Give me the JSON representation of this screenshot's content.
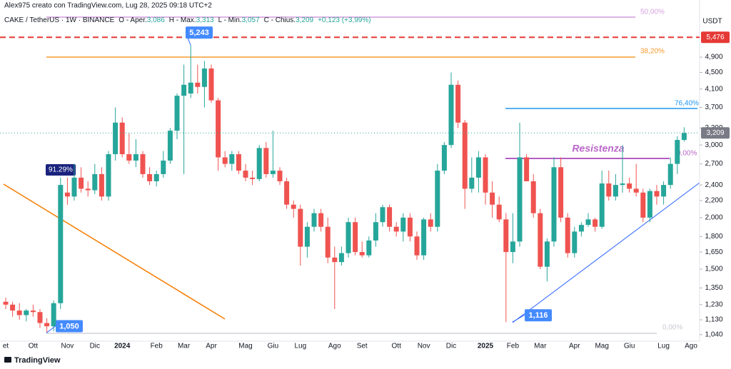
{
  "chart_data": {
    "type": "candlestick",
    "credit": "Alex975 creato con TradingView.com, Lug 28, 2025 09:18 UTC+2",
    "symbol": "CAKE / TetherUS · 1W · BINANCE",
    "header": [
      "O - Aper.",
      "3,086",
      "H - Max.",
      "3,313",
      "L - Min.",
      "3,057",
      "C - Chius.",
      "3,209",
      "+0,123 (+3,99%)"
    ],
    "currency": "USDT",
    "brand": "TradingView",
    "log_scale": true,
    "up_color": "#26a69a",
    "down_color": "#ef5350",
    "ylim": [
      0.995,
      6.48
    ],
    "yticks": [
      {
        "value": 1.04,
        "label": "1,040"
      },
      {
        "value": 1.13,
        "label": "1,130"
      },
      {
        "value": 1.23,
        "label": "1,230"
      },
      {
        "value": 1.35,
        "label": "1,350"
      },
      {
        "value": 1.5,
        "label": "1,500"
      },
      {
        "value": 1.65,
        "label": "1,650"
      },
      {
        "value": 1.8,
        "label": "1,800"
      },
      {
        "value": 2,
        "label": "2,000"
      },
      {
        "value": 2.2,
        "label": "2,200"
      },
      {
        "value": 2.4,
        "label": "2,400"
      },
      {
        "value": 2.7,
        "label": "2,700"
      },
      {
        "value": 3,
        "label": "3,000"
      },
      {
        "value": 3.3,
        "label": "3,300"
      },
      {
        "value": 3.7,
        "label": "3,700"
      },
      {
        "value": 4.1,
        "label": "4,100"
      },
      {
        "value": 4.5,
        "label": "4,500"
      },
      {
        "value": 4.9,
        "label": "4,900"
      }
    ],
    "categories": [
      "et",
      null,
      null,
      null,
      "Ott",
      null,
      null,
      null,
      null,
      "Nov",
      null,
      null,
      null,
      "Dic",
      null,
      null,
      null,
      "2024",
      null,
      null,
      null,
      null,
      "Feb",
      null,
      null,
      null,
      "Mar",
      null,
      null,
      null,
      "Apr",
      null,
      null,
      null,
      null,
      "Mag",
      null,
      null,
      null,
      "Giu",
      null,
      null,
      null,
      "Lug",
      null,
      null,
      null,
      null,
      "Ago",
      null,
      null,
      null,
      "Set",
      null,
      null,
      null,
      null,
      "Ott",
      null,
      null,
      null,
      "Nov",
      null,
      null,
      null,
      "Dic",
      null,
      null,
      null,
      null,
      "2025",
      null,
      null,
      null,
      "Feb",
      null,
      null,
      null,
      "Mar",
      null,
      null,
      null,
      null,
      "Apr",
      null,
      null,
      null,
      "Mag",
      null,
      null,
      null,
      "Giu",
      null,
      null,
      null,
      null,
      "Lug",
      null,
      null,
      null,
      "Ago"
    ],
    "open": [
      1.25,
      1.23,
      1.19,
      1.16,
      1.19,
      1.18,
      1.11,
      1.09,
      1.24,
      2.3,
      2.25,
      2.5,
      2.35,
      2.33,
      2.55,
      2.25,
      2.85,
      3.4,
      2.85,
      2.75,
      2.85,
      2.55,
      2.45,
      2.55,
      2.75,
      3.25,
      3.95,
      4.0,
      4.25,
      4.15,
      4.6,
      3.85,
      2.8,
      2.7,
      2.85,
      2.6,
      2.5,
      2.48,
      2.95,
      2.55,
      2.6,
      2.45,
      2.15,
      2.1,
      1.7,
      1.9,
      2.05,
      1.9,
      1.6,
      1.56,
      1.64,
      1.95,
      1.65,
      1.62,
      1.76,
      1.95,
      2.12,
      1.9,
      1.85,
      2.0,
      1.8,
      1.62,
      1.98,
      1.9,
      2.6,
      3.0,
      4.2,
      3.4,
      2.35,
      2.5,
      2.8,
      2.3,
      2.15,
      1.98,
      1.65,
      1.75,
      2.8,
      2.45,
      2.05,
      1.52,
      1.75,
      2.65,
      2.0,
      1.64,
      1.85,
      1.92,
      1.98,
      1.9,
      2.42,
      2.25,
      2.4,
      2.42,
      2.35,
      2.3,
      2.0,
      2.32,
      2.25,
      2.4,
      2.7,
      3.086,
      null
    ],
    "high": [
      1.28,
      1.25,
      1.24,
      1.2,
      1.23,
      1.2,
      1.14,
      1.26,
      2.5,
      2.5,
      2.7,
      2.65,
      2.45,
      2.7,
      2.65,
      2.9,
      3.7,
      3.5,
      3.2,
      3.1,
      2.9,
      2.65,
      2.6,
      2.9,
      3.3,
      4.0,
      4.7,
      5.243,
      4.7,
      4.8,
      4.7,
      3.9,
      2.9,
      2.9,
      2.9,
      2.7,
      2.6,
      3.0,
      3.05,
      3.25,
      2.65,
      2.5,
      2.2,
      2.15,
      1.95,
      2.1,
      2.1,
      2.0,
      1.7,
      1.7,
      2.0,
      2.0,
      1.75,
      1.8,
      2.05,
      2.15,
      2.15,
      1.95,
      2.05,
      2.05,
      1.85,
      2.0,
      2.05,
      2.7,
      3.05,
      4.5,
      4.3,
      3.45,
      2.8,
      2.9,
      2.85,
      2.45,
      2.25,
      2.05,
      2.05,
      3.4,
      2.85,
      2.55,
      2.1,
      1.78,
      2.8,
      2.8,
      2.05,
      1.9,
      1.95,
      2.05,
      2.0,
      2.6,
      2.6,
      2.55,
      3.0,
      2.5,
      2.7,
      2.35,
      2.35,
      2.4,
      2.45,
      2.8,
      3.15,
      3.313,
      null
    ],
    "low": [
      1.2,
      1.15,
      1.13,
      1.12,
      1.15,
      1.08,
      1.05,
      1.06,
      1.2,
      2.15,
      2.2,
      2.3,
      2.25,
      2.28,
      2.2,
      2.2,
      2.75,
      2.8,
      2.7,
      2.65,
      2.5,
      2.4,
      2.38,
      2.5,
      2.7,
      3.1,
      2.55,
      3.9,
      4.0,
      3.7,
      3.8,
      2.6,
      2.65,
      2.6,
      2.55,
      2.45,
      2.4,
      2.45,
      2.5,
      2.5,
      2.4,
      2.1,
      2.0,
      1.53,
      1.6,
      1.85,
      1.85,
      1.55,
      1.2,
      1.53,
      1.6,
      1.62,
      1.6,
      1.6,
      1.7,
      1.9,
      1.85,
      1.8,
      1.75,
      1.75,
      1.58,
      1.58,
      1.85,
      1.85,
      2.55,
      2.95,
      3.3,
      2.1,
      2.3,
      2.3,
      2.15,
      2.0,
      1.95,
      1.116,
      1.55,
      1.7,
      2.45,
      2.0,
      1.5,
      1.4,
      1.7,
      1.95,
      1.6,
      1.6,
      1.8,
      1.9,
      1.85,
      1.88,
      2.2,
      2.2,
      2.3,
      2.3,
      2.25,
      1.95,
      1.95,
      2.15,
      2.15,
      2.35,
      2.55,
      3.057,
      null
    ],
    "close": [
      1.23,
      1.19,
      1.16,
      1.19,
      1.18,
      1.11,
      1.09,
      1.24,
      2.4,
      2.25,
      2.5,
      2.35,
      2.33,
      2.55,
      2.25,
      2.85,
      3.4,
      2.85,
      2.75,
      2.85,
      2.55,
      2.45,
      2.55,
      2.75,
      3.25,
      3.95,
      4.2,
      4.25,
      4.15,
      4.6,
      3.85,
      2.8,
      2.7,
      2.85,
      2.6,
      2.5,
      2.48,
      2.95,
      2.55,
      2.6,
      2.45,
      2.15,
      2.1,
      1.7,
      1.9,
      2.05,
      1.9,
      1.6,
      1.56,
      1.64,
      1.95,
      1.65,
      1.62,
      1.76,
      1.95,
      2.12,
      1.9,
      1.85,
      2.0,
      1.8,
      1.62,
      1.98,
      1.9,
      2.6,
      3.0,
      4.2,
      3.4,
      2.35,
      2.5,
      2.8,
      2.3,
      2.15,
      1.98,
      1.65,
      1.75,
      2.8,
      2.45,
      2.05,
      1.52,
      1.75,
      2.65,
      2.0,
      1.64,
      1.85,
      1.92,
      1.98,
      1.9,
      2.42,
      2.25,
      2.4,
      2.42,
      2.35,
      2.3,
      2.0,
      2.32,
      2.25,
      2.4,
      2.7,
      3.086,
      3.209,
      null
    ],
    "last_price_label": "3,209",
    "price_line": {
      "value": 5.476,
      "label": "5,476",
      "color": "#e53935"
    },
    "callouts": [
      {
        "value": 5.243,
        "label": "5,243"
      },
      {
        "value": 1.05,
        "label": "1,050"
      },
      {
        "value": 1.116,
        "label": "1,116"
      }
    ],
    "move_label": "91.29%",
    "fib_labels": [
      "50,00%",
      "38,20%",
      "76,40%",
      "0,00%",
      "0,00%"
    ],
    "annotation": "Resistenza"
  }
}
